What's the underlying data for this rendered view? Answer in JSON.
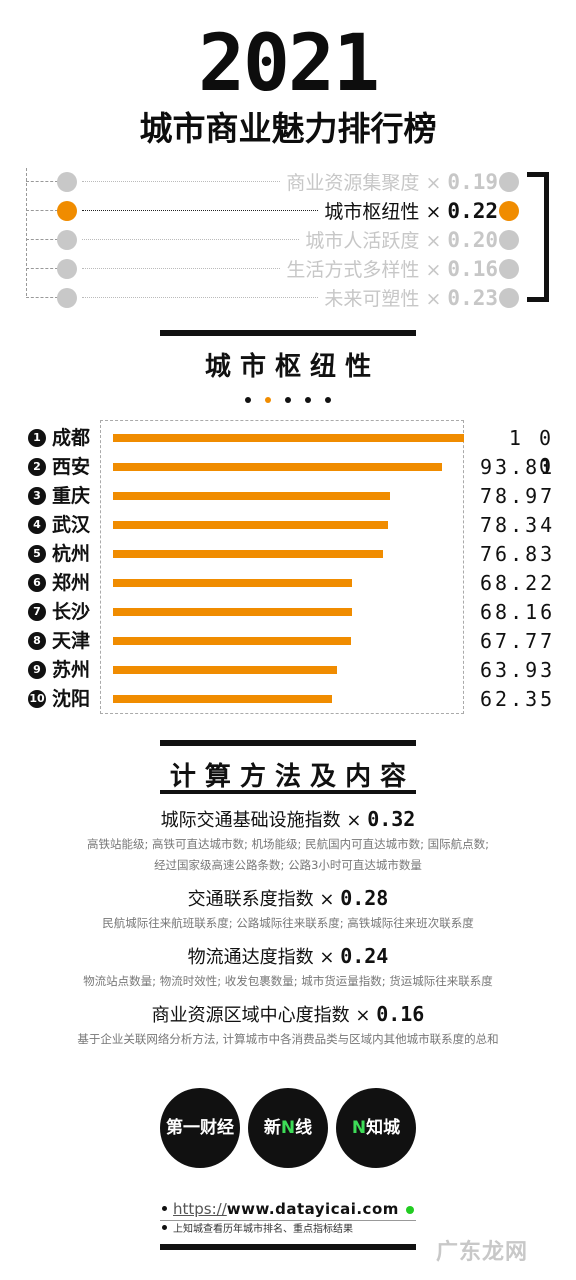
{
  "header": {
    "year": "2021",
    "title": "城市商业魅力排行榜"
  },
  "weights": [
    {
      "label": "商业资源集聚度",
      "times": "×",
      "value": "0.19",
      "active": false
    },
    {
      "label": "城市枢纽性",
      "times": "×",
      "value": "0.22",
      "active": true
    },
    {
      "label": "城市人活跃度",
      "times": "×",
      "value": "0.20",
      "active": false
    },
    {
      "label": "生活方式多样性",
      "times": "×",
      "value": "0.16",
      "active": false
    },
    {
      "label": "未来可塑性",
      "times": "×",
      "value": "0.23",
      "active": false
    }
  ],
  "section1": {
    "title": "城 市 枢 纽 性"
  },
  "chart_data": {
    "type": "bar",
    "orientation": "horizontal",
    "title": "城 市 枢 纽 性",
    "categories": [
      "成都",
      "西安",
      "重庆",
      "武汉",
      "杭州",
      "郑州",
      "长沙",
      "天津",
      "苏州",
      "沈阳"
    ],
    "ranks": [
      "1",
      "2",
      "3",
      "4",
      "5",
      "6",
      "7",
      "8",
      "9",
      "10"
    ],
    "values": [
      100,
      93.81,
      78.97,
      78.34,
      76.83,
      68.22,
      68.16,
      67.77,
      63.93,
      62.35
    ],
    "value_labels": [
      "1 0 0",
      "93.81",
      "78.97",
      "78.34",
      "76.83",
      "68.22",
      "68.16",
      "67.77",
      "63.93",
      "62.35"
    ],
    "xlim": [
      0,
      100
    ],
    "color": "#f08c00",
    "grid": false
  },
  "methods": {
    "title": "计 算 方 法 及 内 容",
    "items": [
      {
        "name": "城际交通基础设施指数",
        "times": "×",
        "value": "0.32",
        "desc": [
          "高铁站能级; 高铁可直达城市数; 机场能级; 民航国内可直达城市数; 国际航点数;",
          "经过国家级高速公路条数; 公路3小时可直达城市数量"
        ]
      },
      {
        "name": "交通联系度指数",
        "times": "×",
        "value": "0.28",
        "desc": [
          "民航城际往来航班联系度; 公路城际往来联系度; 高铁城际往来班次联系度"
        ]
      },
      {
        "name": "物流通达度指数",
        "times": "×",
        "value": "0.24",
        "desc": [
          "物流站点数量; 物流时效性; 收发包裹数量; 城市货运量指数; 货运城际往来联系度"
        ]
      },
      {
        "name": "商业资源区域中心度指数",
        "times": "×",
        "value": "0.16",
        "desc": [
          "基于企业关联网络分析方法, 计算城市中各消费品类与区域内其他城市联系度的总和"
        ]
      }
    ]
  },
  "logos": {
    "l1": "第一财经",
    "l2a": "新",
    "l2b": "线",
    "l3a": "知城"
  },
  "footer": {
    "https": "https://",
    "domain": "www.datayicai.com",
    "note": "上知城查看历年城市排名、重点指标结果"
  },
  "watermark": "广东龙网",
  "colors": {
    "accent": "#f08c00",
    "inactive": "#c8c8c8",
    "green": "#22cc22"
  }
}
